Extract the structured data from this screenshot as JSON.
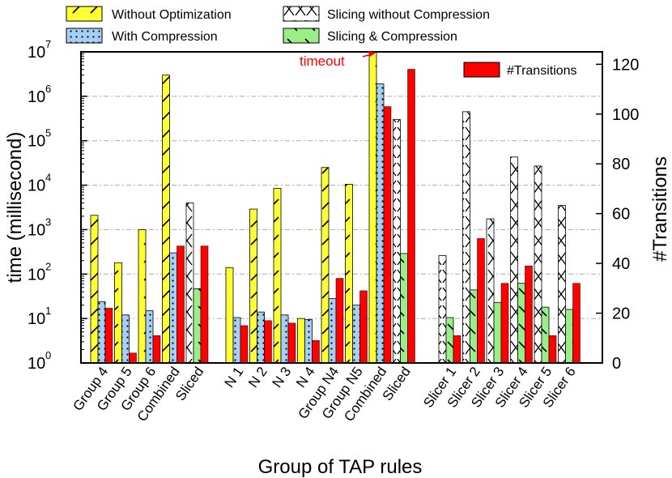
{
  "chart_data": {
    "type": "bar",
    "xlabel": "Group of TAP rules",
    "ylabel": "time (millisecond)",
    "y2label": "#Transitions",
    "yscale": "log",
    "ylim": [
      1,
      10000000
    ],
    "y2lim": [
      0,
      125
    ],
    "y_ticks": [
      {
        "base": "10",
        "exp": "0",
        "value": 1
      },
      {
        "base": "10",
        "exp": "1",
        "value": 10
      },
      {
        "base": "10",
        "exp": "2",
        "value": 100
      },
      {
        "base": "10",
        "exp": "3",
        "value": 1000
      },
      {
        "base": "10",
        "exp": "4",
        "value": 10000
      },
      {
        "base": "10",
        "exp": "5",
        "value": 100000
      },
      {
        "base": "10",
        "exp": "6",
        "value": 1000000
      },
      {
        "base": "10",
        "exp": "7",
        "value": 10000000
      }
    ],
    "y2_ticks": [
      "0",
      "20",
      "40",
      "60",
      "80",
      "100",
      "120"
    ],
    "grid": "horizontal dashed",
    "legend_placement": "top, above plot",
    "annotation": {
      "text": "timeout",
      "color": "#ff0000"
    },
    "categories": [
      "Group 4",
      "Group 5",
      "Group 6",
      "Combined",
      "Sliced",
      "N 1",
      "N 2",
      "N 3",
      "N 4",
      "Group N4",
      "Group N5",
      "Combined",
      "Sliced",
      "Slicer 1",
      "Slicer 2",
      "Slicer 3",
      "Slicer 4",
      "Slicer 5",
      "Slicer 6"
    ],
    "series": [
      {
        "name": "Without Optimization",
        "axis": "left",
        "pattern": "yellow-slash",
        "color": "#ffff33",
        "values": [
          2100,
          180,
          1000,
          3000000,
          null,
          140,
          2900,
          8500,
          10,
          25000,
          10500,
          10000000,
          null,
          null,
          null,
          null,
          null,
          null,
          null
        ]
      },
      {
        "name": "With Compression",
        "axis": "left",
        "pattern": "blue-dots",
        "color": "#a6cff5",
        "values": [
          24,
          12,
          15,
          300,
          null,
          10.5,
          14,
          12,
          9.5,
          28,
          20,
          1900000,
          null,
          null,
          null,
          null,
          null,
          null,
          null
        ]
      },
      {
        "name": "Slicing without Compression",
        "axis": "left",
        "pattern": "white-cross",
        "color": "#ffffff",
        "values": [
          null,
          null,
          null,
          null,
          4000,
          null,
          null,
          null,
          null,
          null,
          null,
          null,
          300000,
          260,
          450000,
          1750,
          43000,
          27000,
          3500
        ]
      },
      {
        "name": "Slicing & Compression",
        "axis": "left",
        "pattern": "green-backslash",
        "color": "#99ee88",
        "values": [
          null,
          null,
          null,
          null,
          47,
          null,
          null,
          null,
          null,
          null,
          null,
          null,
          290,
          10.5,
          44,
          23,
          62,
          18,
          16
        ]
      },
      {
        "name": "#Transitions",
        "axis": "right",
        "pattern": "solid",
        "color": "#ff0000",
        "values": [
          22,
          4,
          11,
          47,
          47,
          15,
          17,
          16,
          9,
          34,
          29,
          103,
          118,
          11,
          50,
          32,
          39,
          11,
          32
        ]
      }
    ]
  }
}
